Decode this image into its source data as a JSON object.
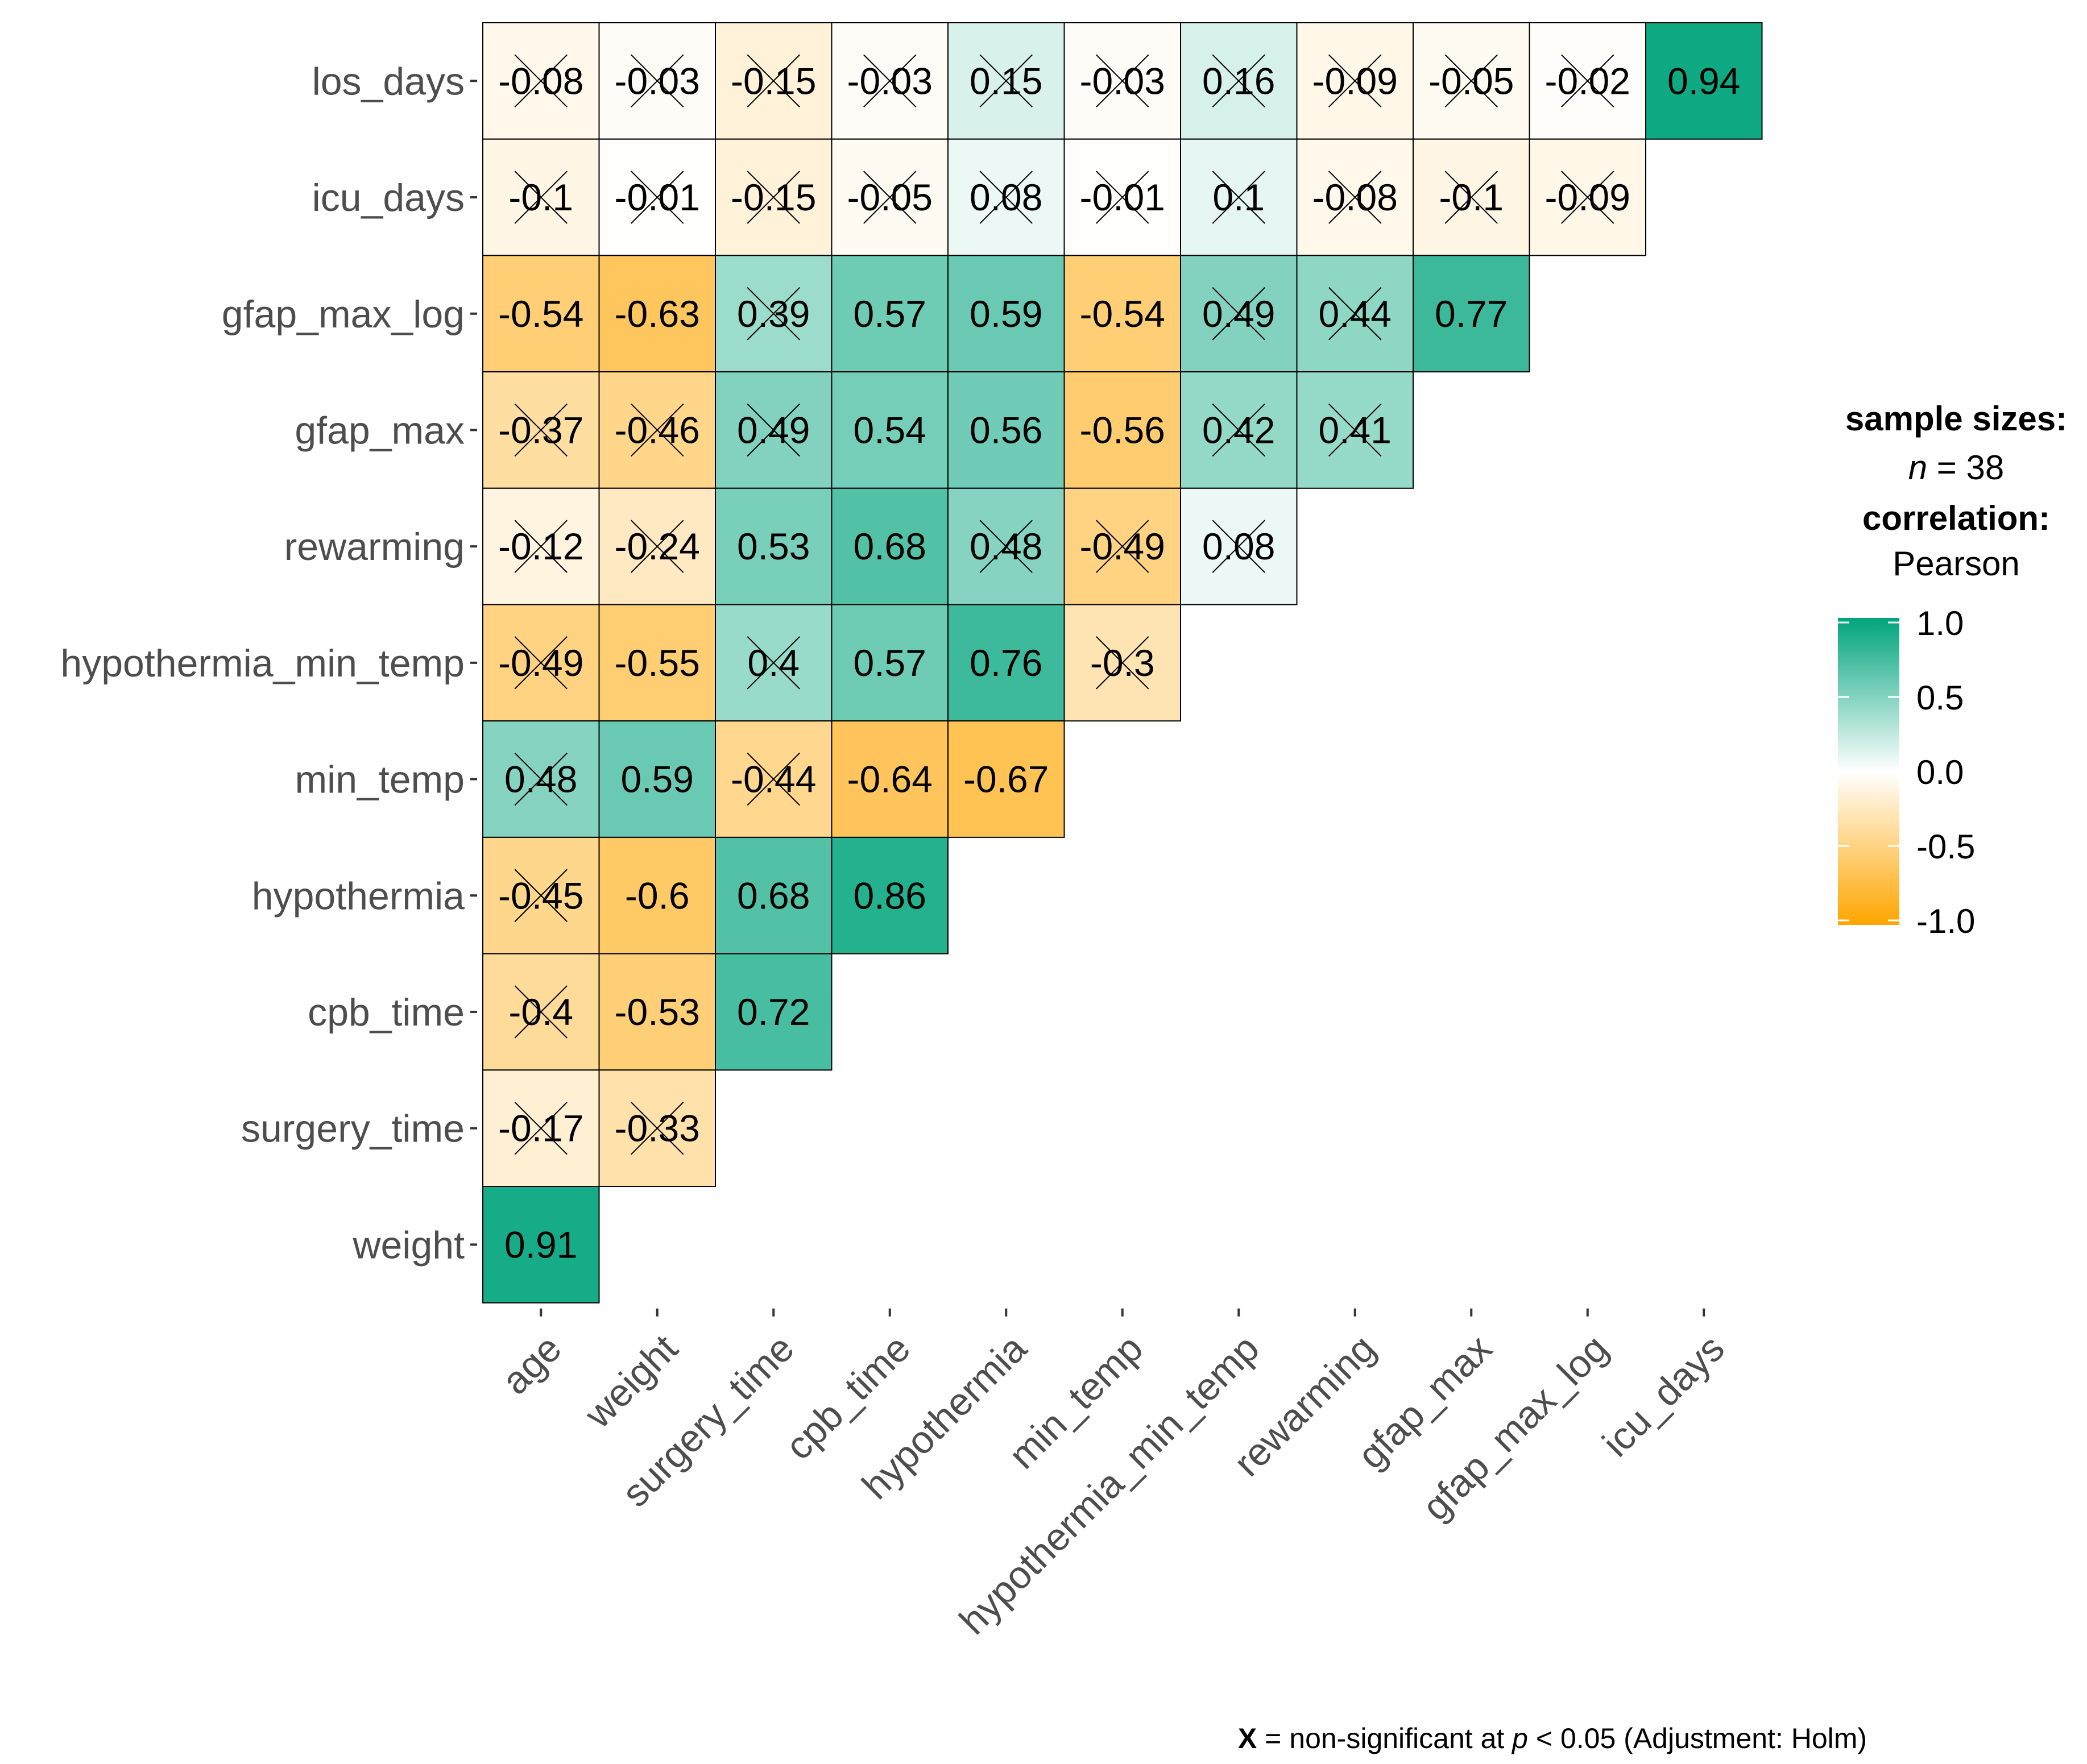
{
  "chart_data": {
    "type": "heatmap",
    "title": "",
    "subtitle": "",
    "caption": {
      "symbol": "X",
      "text_before_p": " = non-significant at ",
      "p_symbol": "p",
      "text_after_p": " < 0.05 (Adjustment: Holm)"
    },
    "x_categories": [
      "age",
      "weight",
      "surgery_time",
      "cpb_time",
      "hypothermia",
      "min_temp",
      "hypothermia_min_temp",
      "rewarming",
      "gfap_max",
      "gfap_max_log",
      "icu_days"
    ],
    "y_categories": [
      "weight",
      "surgery_time",
      "cpb_time",
      "hypothermia",
      "min_temp",
      "hypothermia_min_temp",
      "rewarming",
      "gfap_max",
      "gfap_max_log",
      "icu_days",
      "los_days"
    ],
    "cells": [
      {
        "row": "los_days",
        "col": "age",
        "value": -0.08,
        "label": "-0.08",
        "significant": false
      },
      {
        "row": "los_days",
        "col": "weight",
        "value": -0.03,
        "label": "-0.03",
        "significant": false
      },
      {
        "row": "los_days",
        "col": "surgery_time",
        "value": -0.15,
        "label": "-0.15",
        "significant": false
      },
      {
        "row": "los_days",
        "col": "cpb_time",
        "value": -0.03,
        "label": "-0.03",
        "significant": false
      },
      {
        "row": "los_days",
        "col": "hypothermia",
        "value": 0.15,
        "label": "0.15",
        "significant": false
      },
      {
        "row": "los_days",
        "col": "min_temp",
        "value": -0.03,
        "label": "-0.03",
        "significant": false
      },
      {
        "row": "los_days",
        "col": "hypothermia_min_temp",
        "value": 0.16,
        "label": "0.16",
        "significant": false
      },
      {
        "row": "los_days",
        "col": "rewarming",
        "value": -0.09,
        "label": "-0.09",
        "significant": false
      },
      {
        "row": "los_days",
        "col": "gfap_max",
        "value": -0.05,
        "label": "-0.05",
        "significant": false
      },
      {
        "row": "los_days",
        "col": "gfap_max_log",
        "value": -0.02,
        "label": "-0.02",
        "significant": false
      },
      {
        "row": "los_days",
        "col": "icu_days",
        "value": 0.94,
        "label": "0.94",
        "significant": true
      },
      {
        "row": "icu_days",
        "col": "age",
        "value": -0.1,
        "label": "-0.1",
        "significant": false
      },
      {
        "row": "icu_days",
        "col": "weight",
        "value": -0.01,
        "label": "-0.01",
        "significant": false
      },
      {
        "row": "icu_days",
        "col": "surgery_time",
        "value": -0.15,
        "label": "-0.15",
        "significant": false
      },
      {
        "row": "icu_days",
        "col": "cpb_time",
        "value": -0.05,
        "label": "-0.05",
        "significant": false
      },
      {
        "row": "icu_days",
        "col": "hypothermia",
        "value": 0.08,
        "label": "0.08",
        "significant": false
      },
      {
        "row": "icu_days",
        "col": "min_temp",
        "value": -0.01,
        "label": "-0.01",
        "significant": false
      },
      {
        "row": "icu_days",
        "col": "hypothermia_min_temp",
        "value": 0.1,
        "label": "0.1",
        "significant": false
      },
      {
        "row": "icu_days",
        "col": "rewarming",
        "value": -0.08,
        "label": "-0.08",
        "significant": false
      },
      {
        "row": "icu_days",
        "col": "gfap_max",
        "value": -0.1,
        "label": "-0.1",
        "significant": false
      },
      {
        "row": "icu_days",
        "col": "gfap_max_log",
        "value": -0.09,
        "label": "-0.09",
        "significant": false
      },
      {
        "row": "gfap_max_log",
        "col": "age",
        "value": -0.54,
        "label": "-0.54",
        "significant": true
      },
      {
        "row": "gfap_max_log",
        "col": "weight",
        "value": -0.63,
        "label": "-0.63",
        "significant": true
      },
      {
        "row": "gfap_max_log",
        "col": "surgery_time",
        "value": 0.39,
        "label": "0.39",
        "significant": false
      },
      {
        "row": "gfap_max_log",
        "col": "cpb_time",
        "value": 0.57,
        "label": "0.57",
        "significant": true
      },
      {
        "row": "gfap_max_log",
        "col": "hypothermia",
        "value": 0.59,
        "label": "0.59",
        "significant": true
      },
      {
        "row": "gfap_max_log",
        "col": "min_temp",
        "value": -0.54,
        "label": "-0.54",
        "significant": true
      },
      {
        "row": "gfap_max_log",
        "col": "hypothermia_min_temp",
        "value": 0.49,
        "label": "0.49",
        "significant": false
      },
      {
        "row": "gfap_max_log",
        "col": "rewarming",
        "value": 0.44,
        "label": "0.44",
        "significant": false
      },
      {
        "row": "gfap_max_log",
        "col": "gfap_max",
        "value": 0.77,
        "label": "0.77",
        "significant": true
      },
      {
        "row": "gfap_max",
        "col": "age",
        "value": -0.37,
        "label": "-0.37",
        "significant": false
      },
      {
        "row": "gfap_max",
        "col": "weight",
        "value": -0.46,
        "label": "-0.46",
        "significant": false
      },
      {
        "row": "gfap_max",
        "col": "surgery_time",
        "value": 0.49,
        "label": "0.49",
        "significant": false
      },
      {
        "row": "gfap_max",
        "col": "cpb_time",
        "value": 0.54,
        "label": "0.54",
        "significant": true
      },
      {
        "row": "gfap_max",
        "col": "hypothermia",
        "value": 0.56,
        "label": "0.56",
        "significant": true
      },
      {
        "row": "gfap_max",
        "col": "min_temp",
        "value": -0.56,
        "label": "-0.56",
        "significant": true
      },
      {
        "row": "gfap_max",
        "col": "hypothermia_min_temp",
        "value": 0.42,
        "label": "0.42",
        "significant": false
      },
      {
        "row": "gfap_max",
        "col": "rewarming",
        "value": 0.41,
        "label": "0.41",
        "significant": false
      },
      {
        "row": "rewarming",
        "col": "age",
        "value": -0.12,
        "label": "-0.12",
        "significant": false
      },
      {
        "row": "rewarming",
        "col": "weight",
        "value": -0.24,
        "label": "-0.24",
        "significant": false
      },
      {
        "row": "rewarming",
        "col": "surgery_time",
        "value": 0.53,
        "label": "0.53",
        "significant": true
      },
      {
        "row": "rewarming",
        "col": "cpb_time",
        "value": 0.68,
        "label": "0.68",
        "significant": true
      },
      {
        "row": "rewarming",
        "col": "hypothermia",
        "value": 0.48,
        "label": "0.48",
        "significant": false
      },
      {
        "row": "rewarming",
        "col": "min_temp",
        "value": -0.49,
        "label": "-0.49",
        "significant": false
      },
      {
        "row": "rewarming",
        "col": "hypothermia_min_temp",
        "value": 0.08,
        "label": "0.08",
        "significant": false
      },
      {
        "row": "hypothermia_min_temp",
        "col": "age",
        "value": -0.49,
        "label": "-0.49",
        "significant": false
      },
      {
        "row": "hypothermia_min_temp",
        "col": "weight",
        "value": -0.55,
        "label": "-0.55",
        "significant": true
      },
      {
        "row": "hypothermia_min_temp",
        "col": "surgery_time",
        "value": 0.4,
        "label": "0.4",
        "significant": false
      },
      {
        "row": "hypothermia_min_temp",
        "col": "cpb_time",
        "value": 0.57,
        "label": "0.57",
        "significant": true
      },
      {
        "row": "hypothermia_min_temp",
        "col": "hypothermia",
        "value": 0.76,
        "label": "0.76",
        "significant": true
      },
      {
        "row": "hypothermia_min_temp",
        "col": "min_temp",
        "value": -0.3,
        "label": "-0.3",
        "significant": false
      },
      {
        "row": "min_temp",
        "col": "age",
        "value": 0.48,
        "label": "0.48",
        "significant": false
      },
      {
        "row": "min_temp",
        "col": "weight",
        "value": 0.59,
        "label": "0.59",
        "significant": true
      },
      {
        "row": "min_temp",
        "col": "surgery_time",
        "value": -0.44,
        "label": "-0.44",
        "significant": false
      },
      {
        "row": "min_temp",
        "col": "cpb_time",
        "value": -0.64,
        "label": "-0.64",
        "significant": true
      },
      {
        "row": "min_temp",
        "col": "hypothermia",
        "value": -0.67,
        "label": "-0.67",
        "significant": true
      },
      {
        "row": "hypothermia",
        "col": "age",
        "value": -0.45,
        "label": "-0.45",
        "significant": false
      },
      {
        "row": "hypothermia",
        "col": "weight",
        "value": -0.6,
        "label": "-0.6",
        "significant": true
      },
      {
        "row": "hypothermia",
        "col": "surgery_time",
        "value": 0.68,
        "label": "0.68",
        "significant": true
      },
      {
        "row": "hypothermia",
        "col": "cpb_time",
        "value": 0.86,
        "label": "0.86",
        "significant": true
      },
      {
        "row": "cpb_time",
        "col": "age",
        "value": -0.4,
        "label": "-0.4",
        "significant": false
      },
      {
        "row": "cpb_time",
        "col": "weight",
        "value": -0.53,
        "label": "-0.53",
        "significant": true
      },
      {
        "row": "cpb_time",
        "col": "surgery_time",
        "value": 0.72,
        "label": "0.72",
        "significant": true
      },
      {
        "row": "surgery_time",
        "col": "age",
        "value": -0.17,
        "label": "-0.17",
        "significant": false
      },
      {
        "row": "surgery_time",
        "col": "weight",
        "value": -0.33,
        "label": "-0.33",
        "significant": false
      },
      {
        "row": "weight",
        "col": "age",
        "value": 0.91,
        "label": "0.91",
        "significant": true
      }
    ],
    "color_scale": {
      "low": "#FFA500",
      "mid": "#FFFFFF",
      "high": "#00A47C",
      "limits": [
        -1.0,
        1.0
      ],
      "ticks": [
        "1.0",
        "0.5",
        "0.0",
        "-0.5",
        "-1.0"
      ],
      "tick_values": [
        1.0,
        0.5,
        0.0,
        -0.5,
        -1.0
      ]
    },
    "legend": {
      "title_sample": "sample sizes:",
      "n_label": "n",
      "n_value": " = 38",
      "title_correlation": "correlation:",
      "method": "Pearson",
      "placement": "right"
    }
  }
}
